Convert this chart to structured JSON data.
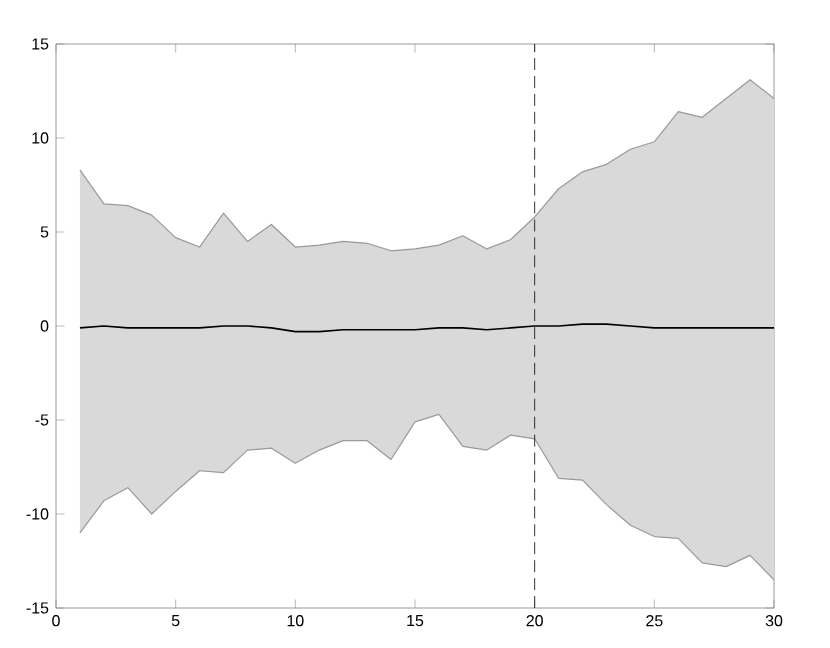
{
  "chart_data": {
    "type": "line",
    "x": [
      1,
      2,
      3,
      4,
      5,
      6,
      7,
      8,
      9,
      10,
      11,
      12,
      13,
      14,
      15,
      16,
      17,
      18,
      19,
      20,
      21,
      22,
      23,
      24,
      25,
      26,
      27,
      28,
      29,
      30
    ],
    "series": [
      {
        "color": "#000000",
        "values": [
          -0.1,
          0,
          -0.1,
          -0.1,
          -0.1,
          -0.1,
          0,
          0,
          -0.1,
          -0.3,
          -0.3,
          -0.2,
          -0.2,
          -0.2,
          -0.2,
          -0.1,
          -0.1,
          -0.2,
          -0.1,
          0,
          0,
          0.1,
          0.1,
          0,
          -0.1,
          -0.1,
          -0.1,
          -0.1,
          -0.1,
          -0.1
        ],
        "upper": [
          8.3,
          6.5,
          6.4,
          5.9,
          4.7,
          4.2,
          6.0,
          4.5,
          5.4,
          4.2,
          4.3,
          4.5,
          4.4,
          4.0,
          4.1,
          4.3,
          4.8,
          4.1,
          4.6,
          5.8,
          7.3,
          8.2,
          8.6,
          9.4,
          9.8,
          11.4,
          11.1,
          12.1,
          13.1,
          12.1
        ],
        "lower": [
          -11.0,
          -9.3,
          -8.6,
          -10.0,
          -8.8,
          -7.7,
          -7.8,
          -6.6,
          -6.5,
          -7.3,
          -6.6,
          -6.1,
          -6.1,
          -7.1,
          -5.1,
          -4.7,
          -6.4,
          -6.6,
          -5.8,
          -6.0,
          -8.1,
          -8.2,
          -9.5,
          -10.6,
          -11.2,
          -11.3,
          -12.6,
          -12.8,
          -12.2,
          -13.5
        ]
      },
      {
        "color": "#999999",
        "values": [
          8.3,
          6.5,
          6.4,
          5.9,
          4.7,
          4.2,
          6.0,
          4.5,
          5.4,
          4.2,
          4.3,
          4.5,
          4.4,
          4.0,
          4.1,
          4.3,
          4.8,
          4.1,
          4.6,
          5.8,
          7.3,
          8.2,
          8.6,
          9.4,
          9.8,
          11.4,
          11.1,
          12.1,
          13.1,
          12.1
        ]
      },
      {
        "color": "#999999",
        "values": [
          -11.0,
          -9.3,
          -8.6,
          -10.0,
          -8.8,
          -7.7,
          -7.8,
          -6.6,
          -6.5,
          -7.3,
          -6.6,
          -6.1,
          -6.1,
          -7.1,
          -5.1,
          -4.7,
          -6.4,
          -6.6,
          -5.8,
          -6.0,
          -8.1,
          -8.2,
          -9.5,
          -10.6,
          -11.2,
          -11.3,
          -12.6,
          -12.8,
          -12.2,
          -13.5
        ]
      }
    ],
    "xlim": [
      0,
      30
    ],
    "ylim": [
      -15,
      15
    ],
    "xticks": [
      0,
      5,
      10,
      15,
      20,
      25,
      30
    ],
    "yticks": [
      -15,
      -10,
      -5,
      0,
      5,
      10,
      15
    ],
    "ref_lines": [
      {
        "axis": "x",
        "value": 20,
        "color": "#000000",
        "line_style": "dashed"
      }
    ],
    "grid": false,
    "marker": "none",
    "line_style": "solid"
  }
}
